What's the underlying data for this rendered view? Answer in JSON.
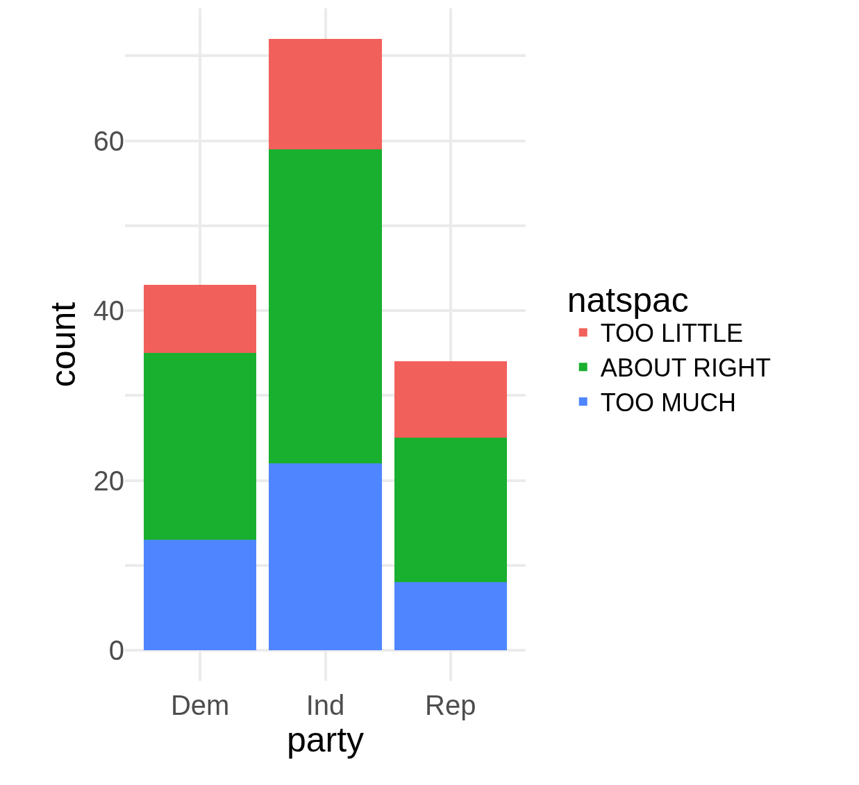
{
  "chart_data": {
    "type": "bar",
    "stacked": true,
    "xlabel": "party",
    "ylabel": "count",
    "legend_title": "natspac",
    "categories": [
      "Dem",
      "Ind",
      "Rep"
    ],
    "series": [
      {
        "name": "TOO MUCH",
        "color": "#4f86ff",
        "values": [
          13,
          22,
          8
        ]
      },
      {
        "name": "ABOUT RIGHT",
        "color": "#19b02f",
        "values": [
          22,
          37,
          17
        ]
      },
      {
        "name": "TOO LITTLE",
        "color": "#f2605b",
        "values": [
          8,
          13,
          9
        ]
      }
    ],
    "ylim": [
      -3.6,
      75.6
    ],
    "yticks": [
      0,
      {
        "value": 10,
        "label": null
      },
      20,
      {
        "value": 30,
        "label": null
      },
      40,
      {
        "value": 50,
        "label": null
      },
      60,
      {
        "value": 70,
        "label": null
      }
    ],
    "grid": true,
    "legend": "right"
  }
}
